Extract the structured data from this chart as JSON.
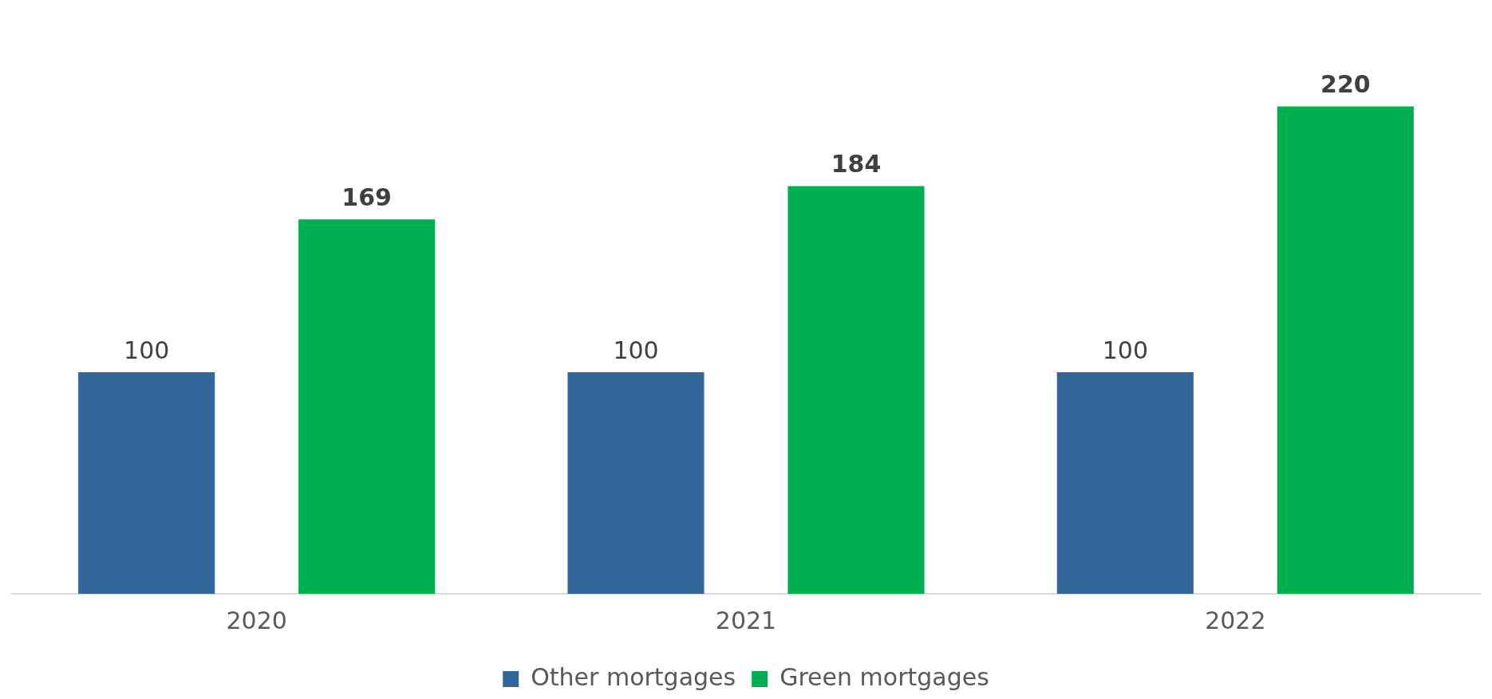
{
  "chart_data": {
    "type": "bar",
    "categories": [
      "2020",
      "2021",
      "2022"
    ],
    "series": [
      {
        "name": "Other mortgages",
        "color": "#336699",
        "values": [
          100,
          100,
          100
        ]
      },
      {
        "name": "Green mortgages",
        "color": "#00b050",
        "values": [
          169,
          184,
          220
        ]
      }
    ],
    "data_labels": true,
    "legend": "bottom",
    "grid": false
  }
}
